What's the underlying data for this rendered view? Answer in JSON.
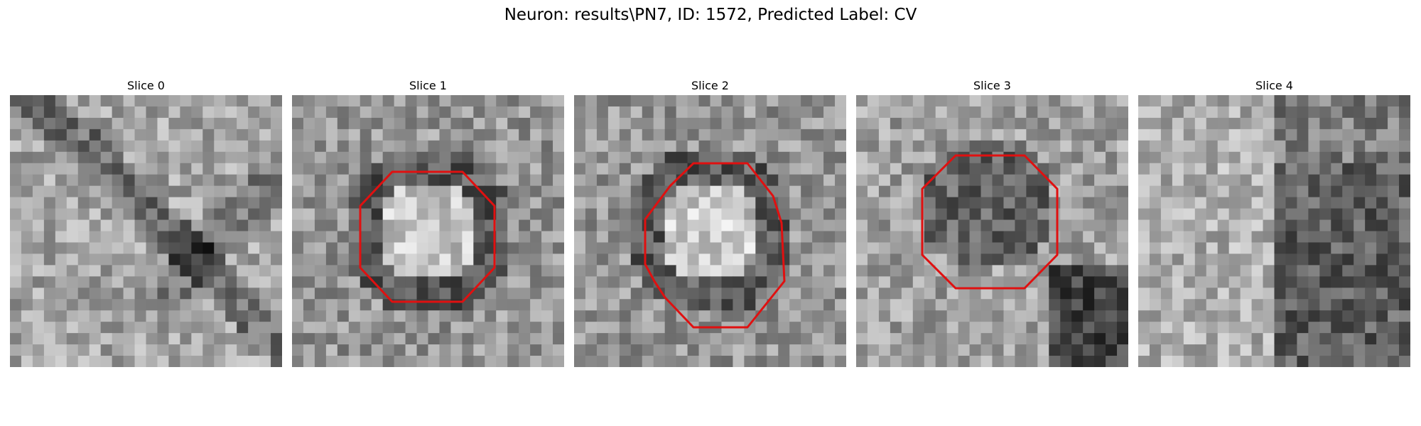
{
  "figure": {
    "title": "Neuron: results\\PN7, ID: 1572, Predicted Label: CV"
  },
  "panels": [
    {
      "title": "Slice 0",
      "has_outline": false,
      "outline_color": "#e01010"
    },
    {
      "title": "Slice 1",
      "has_outline": true,
      "outline_color": "#e01010"
    },
    {
      "title": "Slice 2",
      "has_outline": true,
      "outline_color": "#e01010"
    },
    {
      "title": "Slice 3",
      "has_outline": true,
      "outline_color": "#e01010"
    },
    {
      "title": "Slice 4",
      "has_outline": false,
      "outline_color": "#e01010"
    }
  ],
  "colormap": "gray"
}
